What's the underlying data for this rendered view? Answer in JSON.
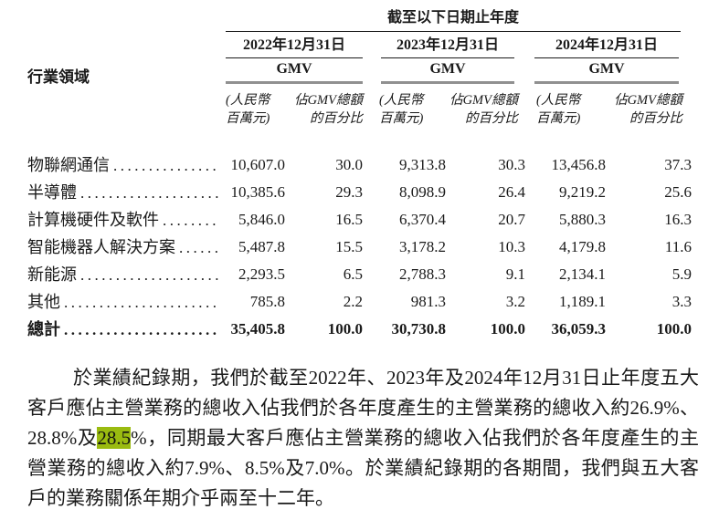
{
  "table": {
    "span_header": "截至以下日期止年度",
    "row_header": "行業領域",
    "groups": [
      {
        "date": "2022年12月31日",
        "metric": "GMV"
      },
      {
        "date": "2023年12月31日",
        "metric": "GMV"
      },
      {
        "date": "2024年12月31日",
        "metric": "GMV"
      }
    ],
    "subcols": {
      "value_line1": "(人民幣",
      "value_line2": "百萬元)",
      "pct_line1": "佔GMV總額",
      "pct_line2": "的百分比"
    },
    "rows": [
      {
        "label": "物聯網通信",
        "values": [
          "10,607.0",
          "30.0",
          "9,313.8",
          "30.3",
          "13,456.8",
          "37.3"
        ]
      },
      {
        "label": "半導體",
        "values": [
          "10,385.6",
          "29.3",
          "8,098.9",
          "26.4",
          "9,219.2",
          "25.6"
        ]
      },
      {
        "label": "計算機硬件及軟件",
        "values": [
          "5,846.0",
          "16.5",
          "6,370.4",
          "20.7",
          "5,880.3",
          "16.3"
        ]
      },
      {
        "label": "智能機器人解決方案",
        "values": [
          "5,487.8",
          "15.5",
          "3,178.2",
          "10.3",
          "4,179.8",
          "11.6"
        ]
      },
      {
        "label": "新能源",
        "values": [
          "2,293.5",
          "6.5",
          "2,788.3",
          "9.1",
          "2,134.1",
          "5.9"
        ]
      },
      {
        "label": "其他",
        "values": [
          "785.8",
          "2.2",
          "981.3",
          "3.2",
          "1,189.1",
          "3.3"
        ]
      }
    ],
    "total_row": {
      "label": "總計",
      "values": [
        "35,405.8",
        "100.0",
        "30,730.8",
        "100.0",
        "36,059.3",
        "100.0"
      ]
    }
  },
  "paragraph": {
    "before_highlight": "於業績紀錄期，我們於截至2022年、2023年及2024年12月31日止年度五大客戶應佔主營業務的總收入佔我們於各年度產生的主營業務的總收入約26.9%、28.8%及",
    "highlight": "28.5",
    "after_highlight": "%，同期最大客戶應佔主營業務的總收入佔我們於各年度產生的主營業務的總收入約7.9%、8.5%及7.0%。於業績紀錄期的各期間，我們與五大客戶的業務關係年期介乎兩至十二年。"
  },
  "colors": {
    "highlight": "#9abb10",
    "text": "#1a1a1a",
    "thin_rule": "#1a1a1a",
    "thick_rule": "#909090"
  }
}
